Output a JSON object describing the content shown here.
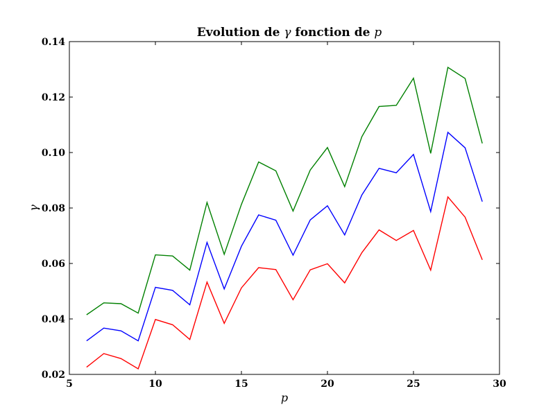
{
  "chart_data": {
    "type": "line",
    "title_prefix": "Evolution de ",
    "title_gamma": "γ",
    "title_middle": " fonction de ",
    "title_p": "p",
    "xlabel": "p",
    "ylabel": "γ",
    "xlim": [
      5,
      30
    ],
    "ylim": [
      0.02,
      0.14
    ],
    "xticks": [
      5,
      10,
      15,
      20,
      25,
      30
    ],
    "xtick_labels": [
      "5",
      "10",
      "15",
      "20",
      "25",
      "30"
    ],
    "yticks": [
      0.02,
      0.04,
      0.06,
      0.08,
      0.1,
      0.12,
      0.14
    ],
    "ytick_labels": [
      "0.02",
      "0.04",
      "0.06",
      "0.08",
      "0.10",
      "0.12",
      "0.14"
    ],
    "grid": false,
    "x": [
      6,
      7,
      8,
      9,
      10,
      11,
      12,
      13,
      14,
      15,
      16,
      17,
      18,
      19,
      20,
      21,
      22,
      23,
      24,
      25,
      26,
      27,
      28,
      29
    ],
    "series": [
      {
        "color": "#008000",
        "values": [
          0.0415,
          0.0458,
          0.0455,
          0.0421,
          0.0631,
          0.0627,
          0.0576,
          0.082,
          0.0633,
          0.0813,
          0.0966,
          0.0934,
          0.0789,
          0.0937,
          0.1018,
          0.0877,
          0.1057,
          0.1166,
          0.117,
          0.1268,
          0.0997,
          0.1307,
          0.1267,
          0.1033
        ]
      },
      {
        "color": "#0000ff",
        "values": [
          0.0321,
          0.0367,
          0.0357,
          0.0321,
          0.0514,
          0.0503,
          0.0451,
          0.0676,
          0.0508,
          0.0662,
          0.0775,
          0.0756,
          0.063,
          0.0757,
          0.0808,
          0.0703,
          0.0847,
          0.0943,
          0.0927,
          0.0993,
          0.0787,
          0.1073,
          0.1017,
          0.0823
        ]
      },
      {
        "color": "#ff0000",
        "values": [
          0.0226,
          0.0275,
          0.0257,
          0.022,
          0.0398,
          0.0379,
          0.0326,
          0.0533,
          0.0384,
          0.0512,
          0.0585,
          0.0578,
          0.0469,
          0.0577,
          0.0599,
          0.053,
          0.0639,
          0.0721,
          0.0683,
          0.0719,
          0.0576,
          0.084,
          0.0767,
          0.0613
        ]
      }
    ]
  }
}
